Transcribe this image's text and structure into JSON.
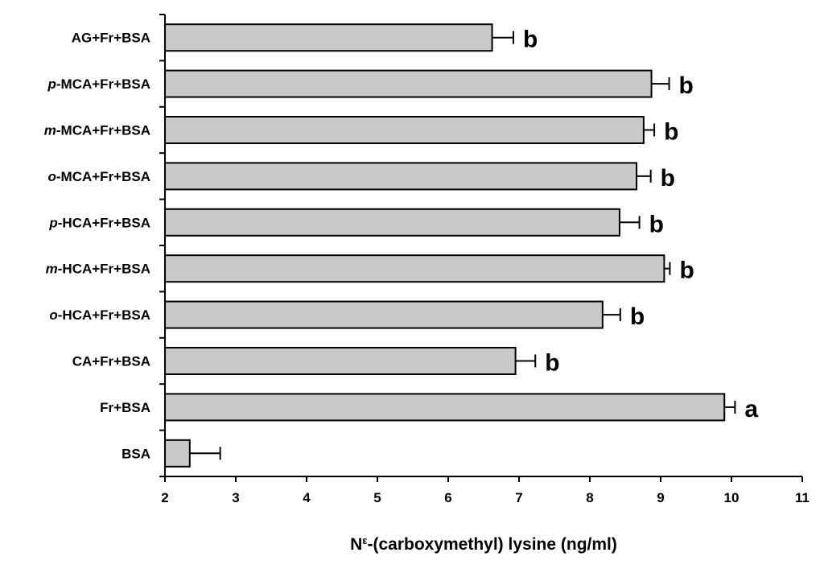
{
  "chart_data": {
    "type": "bar",
    "orientation": "horizontal",
    "categories": [
      {
        "prefix": "",
        "rest": "AG+Fr+BSA"
      },
      {
        "prefix": "p",
        "rest": "-MCA+Fr+BSA"
      },
      {
        "prefix": "m",
        "rest": "-MCA+Fr+BSA"
      },
      {
        "prefix": "o",
        "rest": "-MCA+Fr+BSA"
      },
      {
        "prefix": "p",
        "rest": "-HCA+Fr+BSA"
      },
      {
        "prefix": "m",
        "rest": "-HCA+Fr+BSA"
      },
      {
        "prefix": "o",
        "rest": "-HCA+Fr+BSA"
      },
      {
        "prefix": "",
        "rest": "CA+Fr+BSA"
      },
      {
        "prefix": "",
        "rest": "Fr+BSA"
      },
      {
        "prefix": "",
        "rest": "BSA"
      }
    ],
    "values": [
      6.62,
      8.87,
      8.76,
      8.66,
      8.42,
      9.05,
      8.18,
      6.95,
      9.9,
      2.35
    ],
    "errors": [
      0.3,
      0.25,
      0.15,
      0.2,
      0.28,
      0.08,
      0.25,
      0.28,
      0.15,
      0.43
    ],
    "significance": [
      "b",
      "b",
      "b",
      "b",
      "b",
      "b",
      "b",
      "b",
      "a",
      ""
    ],
    "xlim": [
      2,
      11
    ],
    "xticks": [
      "2",
      "3",
      "4",
      "5",
      "6",
      "7",
      "8",
      "9",
      "10",
      "11"
    ],
    "xlabel": {
      "base": "N",
      "sup": "ε",
      "rest": "-(carboxymethyl) lysine (ng/ml)"
    },
    "title": "",
    "ylabel": "",
    "bar_color": "#c8c8c8",
    "bar_stroke": "#000000",
    "grid": false
  }
}
